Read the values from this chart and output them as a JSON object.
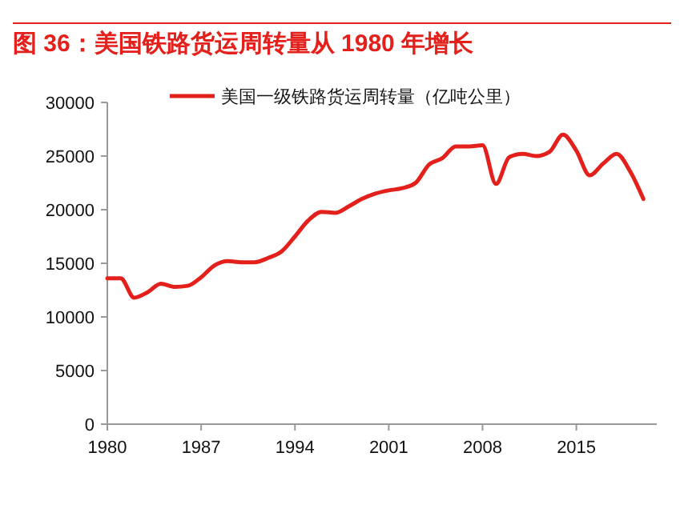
{
  "chart_data": {
    "type": "line",
    "title": "图 36：美国铁路货运周转量从 1980 年增长",
    "x": [
      1980,
      1981,
      1982,
      1983,
      1984,
      1985,
      1986,
      1987,
      1988,
      1989,
      1990,
      1991,
      1992,
      1993,
      1994,
      1995,
      1996,
      1997,
      1998,
      1999,
      2000,
      2001,
      2002,
      2003,
      2004,
      2005,
      2006,
      2007,
      2008,
      2009,
      2010,
      2011,
      2012,
      2013,
      2014,
      2015,
      2016,
      2017,
      2018,
      2019,
      2020
    ],
    "series": [
      {
        "name": "美国一级铁路货运周转量（亿吨公里）",
        "color": "#e3201b",
        "values": [
          13600,
          13600,
          11800,
          12300,
          13100,
          12800,
          12900,
          13700,
          14800,
          15200,
          15100,
          15100,
          15500,
          16100,
          17500,
          19000,
          19800,
          19700,
          20300,
          21000,
          21500,
          21800,
          22000,
          22500,
          24200,
          24800,
          25900,
          25900,
          26000,
          22400,
          24900,
          25200,
          25000,
          25400,
          27000,
          25500,
          23200,
          24300,
          25200,
          23600,
          21000
        ]
      }
    ],
    "xlim": [
      1980,
      2021
    ],
    "xticks": [
      1980,
      1987,
      1994,
      2001,
      2008,
      2015
    ],
    "ylim": [
      0,
      30000
    ],
    "yticks": [
      0,
      5000,
      10000,
      15000,
      20000,
      25000,
      30000
    ],
    "grid": false,
    "legend": "top",
    "marker": "none",
    "line_style": "solid"
  }
}
